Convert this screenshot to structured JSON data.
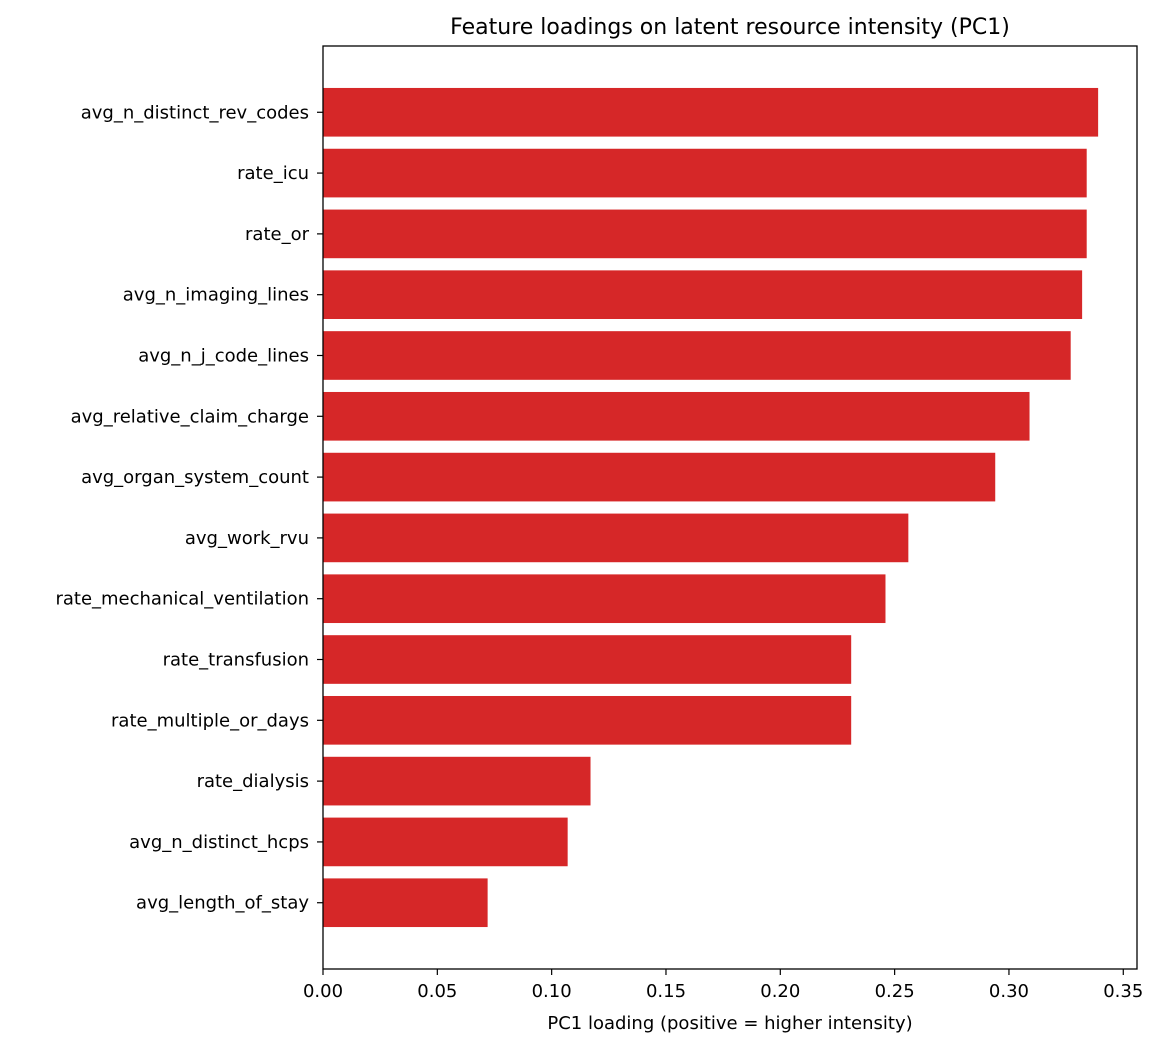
{
  "chart_data": {
    "type": "bar",
    "orientation": "horizontal",
    "title": "Feature loadings on latent resource intensity (PC1)",
    "xlabel": "PC1 loading (positive = higher intensity)",
    "ylabel": "",
    "categories": [
      "avg_n_distinct_rev_codes",
      "rate_icu",
      "rate_or",
      "avg_n_imaging_lines",
      "avg_n_j_code_lines",
      "avg_relative_claim_charge",
      "avg_organ_system_count",
      "avg_work_rvu",
      "rate_mechanical_ventilation",
      "rate_transfusion",
      "rate_multiple_or_days",
      "rate_dialysis",
      "avg_n_distinct_hcps",
      "avg_length_of_stay"
    ],
    "values": [
      0.339,
      0.334,
      0.334,
      0.332,
      0.327,
      0.309,
      0.294,
      0.256,
      0.246,
      0.231,
      0.231,
      0.117,
      0.107,
      0.072
    ],
    "xlim": [
      0,
      0.356
    ],
    "xticks": [
      "0.00",
      "0.05",
      "0.10",
      "0.15",
      "0.20",
      "0.25",
      "0.30",
      "0.35"
    ],
    "grid": false,
    "bar_color": "#d62728"
  }
}
